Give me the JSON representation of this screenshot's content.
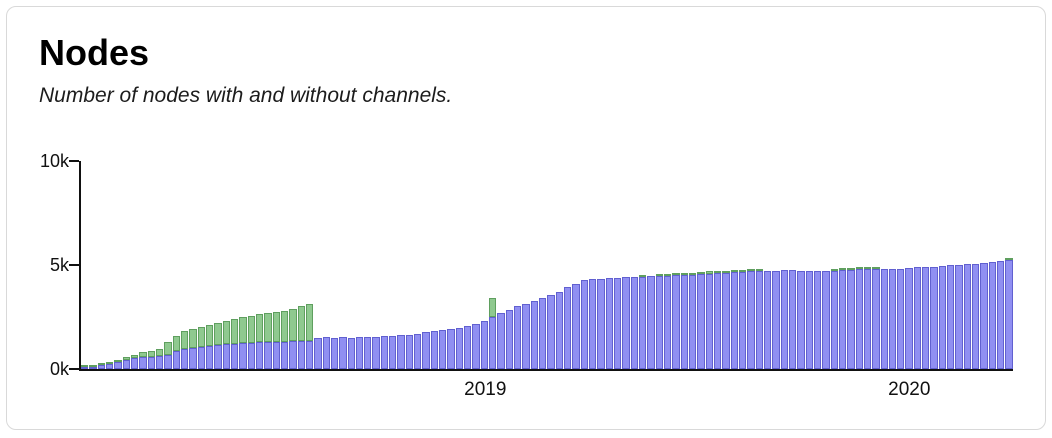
{
  "chart_data": {
    "type": "bar",
    "stacked": true,
    "title": "Nodes",
    "subtitle": "Number of nodes with and without channels.",
    "x_axis": {
      "ticks": [
        {
          "label": "2019",
          "pos": 0.435
        },
        {
          "label": "2020",
          "pos": 0.889
        }
      ]
    },
    "y_axis": {
      "ylim": [
        0,
        10000
      ],
      "ticks": [
        {
          "label": "0k",
          "value": 0
        },
        {
          "label": "5k",
          "value": 5000
        },
        {
          "label": "10k",
          "value": 10000
        }
      ]
    },
    "colors": {
      "with_channels_fill": "#908ff2",
      "with_channels_border": "#6160d0",
      "without_channels_fill": "#8fc98f",
      "without_channels_border": "#5f9f5f"
    },
    "series": [
      {
        "name": "With channels",
        "color": "#908ff2",
        "border": "#6160d0",
        "values": [
          50,
          100,
          180,
          250,
          320,
          420,
          500,
          550,
          580,
          600,
          680,
          850,
          950,
          1000,
          1050,
          1100,
          1150,
          1180,
          1200,
          1220,
          1250,
          1270,
          1280,
          1300,
          1300,
          1320,
          1330,
          1350,
          1500,
          1520,
          1500,
          1520,
          1500,
          1530,
          1550,
          1550,
          1580,
          1600,
          1620,
          1650,
          1680,
          1750,
          1800,
          1850,
          1900,
          1950,
          2050,
          2150,
          2300,
          2500,
          2700,
          2850,
          3000,
          3100,
          3250,
          3400,
          3550,
          3700,
          3950,
          4100,
          4250,
          4300,
          4300,
          4350,
          4350,
          4400,
          4400,
          4400,
          4450,
          4450,
          4450,
          4500,
          4500,
          4500,
          4550,
          4550,
          4600,
          4600,
          4650,
          4650,
          4700,
          4700,
          4720,
          4720,
          4750,
          4750,
          4720,
          4700,
          4700,
          4700,
          4720,
          4750,
          4750,
          4800,
          4800,
          4800,
          4800,
          4800,
          4820,
          4850,
          4880,
          4900,
          4920,
          4950,
          4970,
          5000,
          5020,
          5050,
          5100,
          5120,
          5180,
          5250
        ]
      },
      {
        "name": "Without channels",
        "color": "#8fc98f",
        "border": "#5f9f5f",
        "values": [
          20,
          40,
          60,
          80,
          100,
          140,
          180,
          250,
          300,
          350,
          600,
          750,
          850,
          900,
          950,
          1000,
          1050,
          1120,
          1200,
          1280,
          1300,
          1350,
          1400,
          1450,
          1500,
          1580,
          1670,
          1750,
          0,
          0,
          0,
          0,
          0,
          0,
          0,
          0,
          0,
          0,
          0,
          0,
          0,
          0,
          0,
          0,
          0,
          0,
          0,
          0,
          0,
          900,
          0,
          0,
          0,
          0,
          0,
          0,
          0,
          0,
          0,
          0,
          0,
          0,
          0,
          0,
          0,
          0,
          0,
          50,
          0,
          50,
          100,
          100,
          100,
          100,
          100,
          150,
          100,
          100,
          50,
          50,
          50,
          50,
          0,
          0,
          0,
          0,
          0,
          0,
          0,
          0,
          50,
          50,
          100,
          100,
          100,
          50,
          0,
          0,
          0,
          0,
          0,
          0,
          0,
          0,
          0,
          0,
          0,
          0,
          0,
          0,
          0,
          50
        ]
      }
    ]
  }
}
